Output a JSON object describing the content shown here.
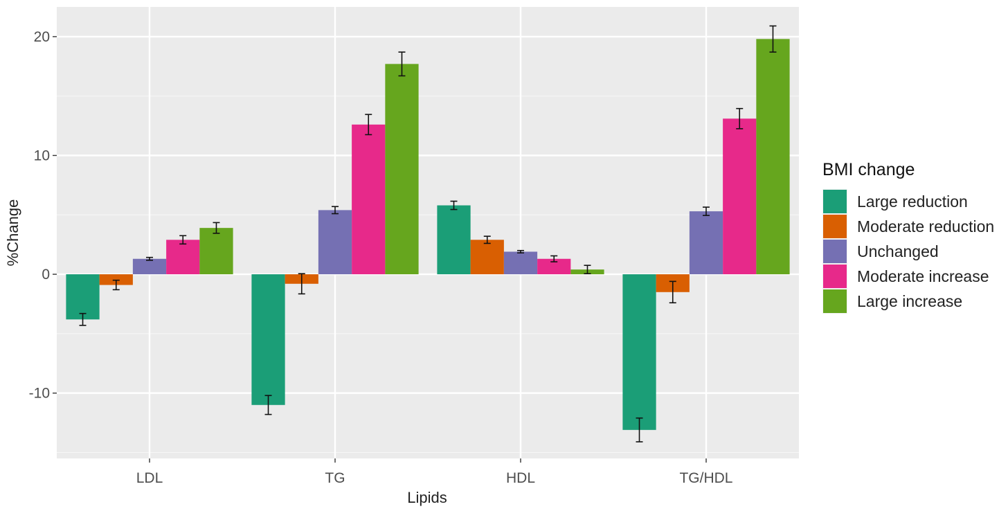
{
  "chart_data": {
    "type": "bar",
    "title": "",
    "xlabel": "Lipids",
    "ylabel": "%Change",
    "categories": [
      "LDL",
      "TG",
      "HDL",
      "TG/HDL"
    ],
    "ylim": [
      -15.5,
      22.5
    ],
    "yticks": [
      -10,
      0,
      10,
      20
    ],
    "ytick_labels": [
      "-10",
      "0",
      "10",
      "20"
    ],
    "grid": true,
    "legend": {
      "title": "BMI change",
      "position": "right"
    },
    "series": [
      {
        "name": "Large reduction",
        "color": "#1b9e77",
        "values": [
          -3.8,
          -11.0,
          5.8,
          -13.1
        ],
        "errors": [
          0.5,
          0.8,
          0.35,
          1.0
        ]
      },
      {
        "name": "Moderate reduction",
        "color": "#d95f02",
        "values": [
          -0.9,
          -0.8,
          2.9,
          -1.5
        ],
        "errors": [
          0.4,
          0.85,
          0.3,
          0.9
        ]
      },
      {
        "name": "Unchanged",
        "color": "#7570b3",
        "values": [
          1.3,
          5.4,
          1.9,
          5.3
        ],
        "errors": [
          0.12,
          0.3,
          0.1,
          0.35
        ]
      },
      {
        "name": "Moderate increase",
        "color": "#e7298a",
        "values": [
          2.9,
          12.6,
          1.3,
          13.1
        ],
        "errors": [
          0.35,
          0.85,
          0.25,
          0.85
        ]
      },
      {
        "name": "Large increase",
        "color": "#66a61e",
        "values": [
          3.9,
          17.7,
          0.4,
          19.8
        ],
        "errors": [
          0.45,
          1.0,
          0.35,
          1.1
        ]
      }
    ]
  }
}
